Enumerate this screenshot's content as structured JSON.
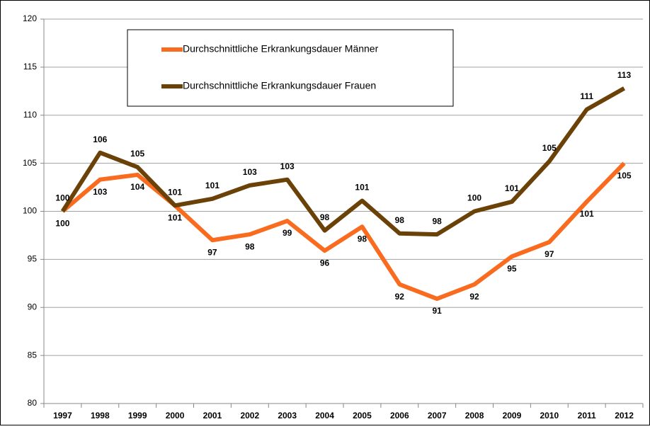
{
  "chart_data": {
    "type": "line",
    "categories": [
      "1997",
      "1998",
      "1999",
      "2000",
      "2001",
      "2002",
      "2003",
      "2004",
      "2005",
      "2006",
      "2007",
      "2008",
      "2009",
      "2010",
      "2011",
      "2012"
    ],
    "series": [
      {
        "name": "Durchschnittliche Erkrankungsdauer Männer",
        "color": "#f96b1e",
        "values": [
          100,
          103.3,
          103.8,
          100.6,
          97.0,
          97.6,
          99.0,
          95.9,
          98.4,
          92.4,
          90.9,
          92.4,
          95.3,
          96.8,
          101.0,
          105.0
        ],
        "value_labels": [
          "100",
          "103",
          "104",
          "101",
          "97",
          "98",
          "99",
          "96",
          "98",
          "92",
          "91",
          "92",
          "95",
          "97",
          "101",
          "105"
        ]
      },
      {
        "name": "Durchschnittliche Erkrankungsdauer Frauen",
        "color": "#6a4106",
        "values": [
          100,
          106.1,
          104.6,
          100.6,
          101.3,
          102.7,
          103.3,
          98.0,
          101.1,
          97.7,
          97.6,
          100.0,
          101.0,
          105.2,
          110.6,
          112.8
        ],
        "value_labels": [
          "100",
          "106",
          "105",
          "101",
          "101",
          "103",
          "103",
          "98",
          "101",
          "98",
          "98",
          "100",
          "101",
          "105",
          "111",
          "113"
        ]
      }
    ],
    "ylim": [
      80,
      120
    ],
    "yticks": [
      80,
      85,
      90,
      95,
      100,
      105,
      110,
      115,
      120
    ],
    "grid": true,
    "legend": "top-left"
  }
}
